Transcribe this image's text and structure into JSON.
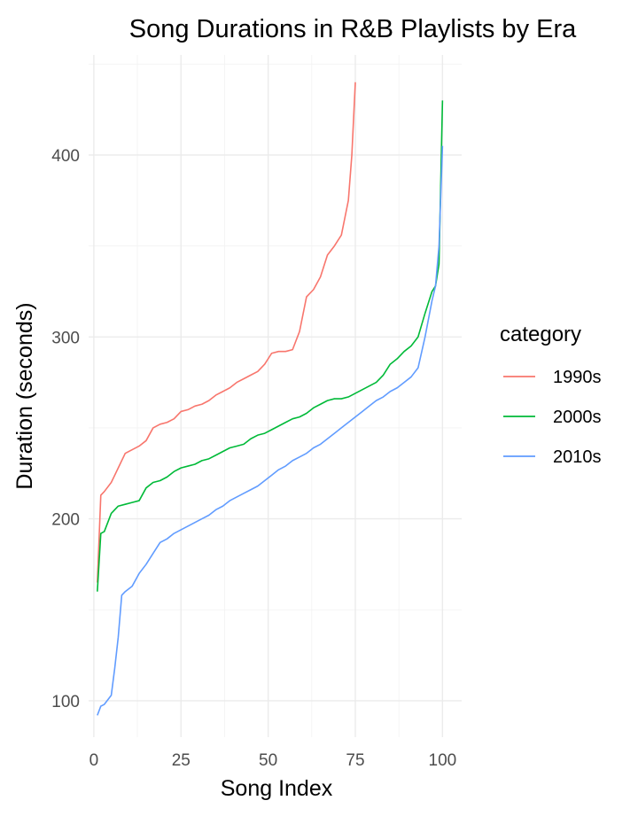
{
  "chart_data": {
    "type": "line",
    "title": "Song Durations in R&B Playlists by Era",
    "xlabel": "Song Index",
    "ylabel": "Duration (seconds)",
    "xlim": [
      -1.5,
      105.5
    ],
    "ylim": [
      80,
      455
    ],
    "xticks": [
      0,
      25,
      50,
      75,
      100
    ],
    "yticks": [
      100,
      200,
      300,
      400
    ],
    "grid": true,
    "legend": {
      "title": "category",
      "position": "right"
    },
    "series": [
      {
        "name": "1990s",
        "color": "#F8766D",
        "x": [
          1,
          2,
          3,
          5,
          7,
          9,
          11,
          13,
          15,
          17,
          19,
          21,
          23,
          25,
          27,
          29,
          31,
          33,
          35,
          37,
          39,
          41,
          43,
          45,
          47,
          49,
          51,
          53,
          55,
          57,
          59,
          61,
          63,
          65,
          67,
          69,
          71,
          73,
          74,
          75
        ],
        "y": [
          165,
          213,
          215,
          220,
          228,
          236,
          238,
          240,
          243,
          250,
          252,
          253,
          255,
          259,
          260,
          262,
          263,
          265,
          268,
          270,
          272,
          275,
          277,
          279,
          281,
          285,
          291,
          292,
          292,
          293,
          303,
          322,
          326,
          333,
          345,
          350,
          356,
          375,
          400,
          440
        ]
      },
      {
        "name": "2000s",
        "color": "#00BA38",
        "x": [
          1,
          2,
          3,
          5,
          7,
          9,
          11,
          13,
          15,
          17,
          19,
          21,
          23,
          25,
          27,
          29,
          31,
          33,
          35,
          37,
          39,
          41,
          43,
          45,
          47,
          49,
          51,
          53,
          55,
          57,
          59,
          61,
          63,
          65,
          67,
          69,
          71,
          73,
          75,
          77,
          79,
          81,
          83,
          85,
          87,
          89,
          91,
          93,
          95,
          97,
          98,
          99,
          100
        ],
        "y": [
          160,
          192,
          193,
          203,
          207,
          208,
          209,
          210,
          217,
          220,
          221,
          223,
          226,
          228,
          229,
          230,
          232,
          233,
          235,
          237,
          239,
          240,
          241,
          244,
          246,
          247,
          249,
          251,
          253,
          255,
          256,
          258,
          261,
          263,
          265,
          266,
          266,
          267,
          269,
          271,
          273,
          275,
          279,
          285,
          288,
          292,
          295,
          300,
          313,
          325,
          328,
          340,
          430
        ]
      },
      {
        "name": "2010s",
        "color": "#619CFF",
        "x": [
          1,
          2,
          3,
          5,
          6,
          7,
          8,
          9,
          11,
          13,
          15,
          17,
          19,
          21,
          23,
          25,
          27,
          29,
          31,
          33,
          35,
          37,
          39,
          41,
          43,
          45,
          47,
          49,
          51,
          53,
          55,
          57,
          59,
          61,
          63,
          65,
          67,
          69,
          71,
          73,
          75,
          77,
          79,
          81,
          83,
          85,
          87,
          89,
          91,
          93,
          95,
          97,
          98,
          99,
          100
        ],
        "y": [
          92,
          97,
          98,
          103,
          118,
          135,
          158,
          160,
          163,
          170,
          175,
          181,
          187,
          189,
          192,
          194,
          196,
          198,
          200,
          202,
          205,
          207,
          210,
          212,
          214,
          216,
          218,
          221,
          224,
          227,
          229,
          232,
          234,
          236,
          239,
          241,
          244,
          247,
          250,
          253,
          256,
          259,
          262,
          265,
          267,
          270,
          272,
          275,
          278,
          283,
          300,
          320,
          328,
          350,
          405
        ]
      }
    ]
  }
}
